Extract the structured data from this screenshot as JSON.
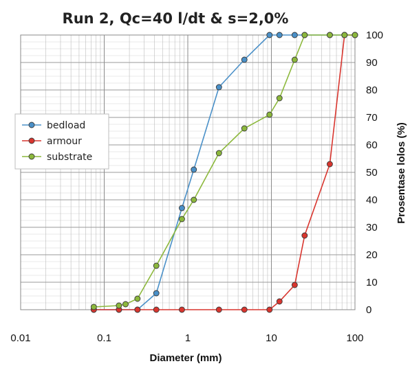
{
  "chart_data": {
    "type": "line",
    "title": "Run 2, Qc=40 l/dt & s=2,0%",
    "xlabel": "Diameter (mm)",
    "ylabel": "Prosentase lolos (%)",
    "xscale": "log",
    "xlim": [
      0.01,
      100
    ],
    "ylim": [
      0,
      100
    ],
    "xticks": [
      "0.01",
      "0.1",
      "1",
      "10",
      "100"
    ],
    "yticks": [
      "0",
      "10",
      "20",
      "30",
      "40",
      "50",
      "60",
      "70",
      "80",
      "90",
      "100"
    ],
    "grid": true,
    "legend_position": "left",
    "series": [
      {
        "name": "bedload",
        "color": "#4a90c8",
        "points": [
          [
            0.075,
            0
          ],
          [
            0.15,
            0
          ],
          [
            0.25,
            0
          ],
          [
            0.42,
            6
          ],
          [
            0.85,
            37
          ],
          [
            1.18,
            51
          ],
          [
            2.36,
            81
          ],
          [
            4.75,
            91
          ],
          [
            9.5,
            100
          ],
          [
            12.5,
            100
          ],
          [
            19,
            100
          ],
          [
            25,
            100
          ],
          [
            50,
            100
          ],
          [
            75,
            100
          ],
          [
            100,
            100
          ]
        ]
      },
      {
        "name": "armour",
        "color": "#d9352e",
        "points": [
          [
            0.075,
            0
          ],
          [
            0.15,
            0
          ],
          [
            0.25,
            0
          ],
          [
            0.42,
            0
          ],
          [
            0.85,
            0
          ],
          [
            2.36,
            0
          ],
          [
            4.75,
            0
          ],
          [
            9.5,
            0
          ],
          [
            12.5,
            3
          ],
          [
            19,
            9
          ],
          [
            25,
            27
          ],
          [
            50,
            53
          ],
          [
            75,
            100
          ],
          [
            100,
            100
          ]
        ]
      },
      {
        "name": "substrate",
        "color": "#8cb83c",
        "points": [
          [
            0.075,
            1
          ],
          [
            0.15,
            1.5
          ],
          [
            0.18,
            2
          ],
          [
            0.25,
            4
          ],
          [
            0.42,
            16
          ],
          [
            0.85,
            33
          ],
          [
            1.18,
            40
          ],
          [
            2.36,
            57
          ],
          [
            4.75,
            66
          ],
          [
            9.5,
            71
          ],
          [
            12.5,
            77
          ],
          [
            19,
            91
          ],
          [
            25,
            100
          ],
          [
            50,
            100
          ],
          [
            75,
            100
          ],
          [
            100,
            100
          ]
        ]
      }
    ]
  }
}
